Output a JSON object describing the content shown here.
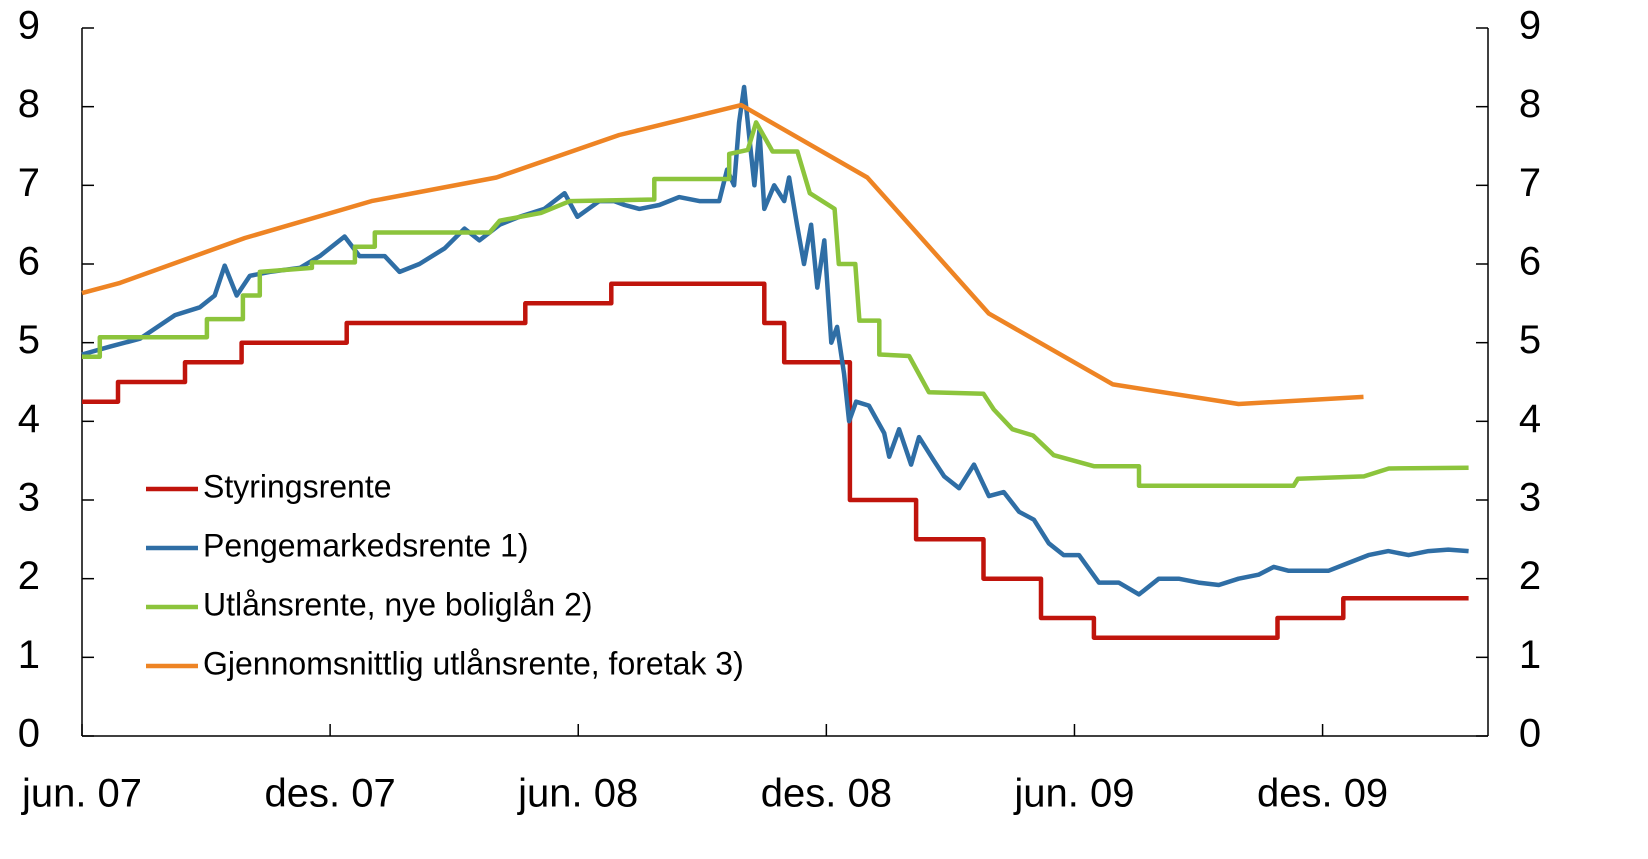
{
  "chart_data": {
    "type": "line",
    "xlim": [
      0,
      34
    ],
    "xticks": [
      {
        "value": 0,
        "label": "jun. 07"
      },
      {
        "value": 6,
        "label": "des. 07"
      },
      {
        "value": 12,
        "label": "jun. 08"
      },
      {
        "value": 18,
        "label": "des. 08"
      },
      {
        "value": 24,
        "label": "jun. 09"
      },
      {
        "value": 30,
        "label": "des. 09"
      }
    ],
    "ylim": [
      0,
      9
    ],
    "yticks": [
      0,
      1,
      2,
      3,
      4,
      5,
      6,
      7,
      8,
      9
    ],
    "y2lim": [
      0,
      9
    ],
    "y2ticks": [
      0,
      1,
      2,
      3,
      4,
      5,
      6,
      7,
      8,
      9
    ],
    "legend": "bottom-left",
    "series": [
      {
        "name": "Styringsrente",
        "color": "#c0140c",
        "x": [
          0,
          0.87,
          0.87,
          2.49,
          2.49,
          3.86,
          3.86,
          6.4,
          6.4,
          10.72,
          10.72,
          12.8,
          12.8,
          16.5,
          16.5,
          16.98,
          16.98,
          18.57,
          18.57,
          20.17,
          20.17,
          21.8,
          21.8,
          23.19,
          23.19,
          24.47,
          24.47,
          28.91,
          28.91,
          30.5,
          30.5,
          33.53
        ],
        "values": [
          4.25,
          4.25,
          4.5,
          4.5,
          4.75,
          4.75,
          5,
          5,
          5.25,
          5.25,
          5.5,
          5.5,
          5.75,
          5.75,
          5.25,
          5.25,
          4.75,
          4.75,
          3,
          3,
          2.5,
          2.5,
          2,
          2,
          1.5,
          1.5,
          1.25,
          1.25,
          1.5,
          1.5,
          1.75,
          1.75
        ]
      },
      {
        "name": "Pengemarkedsrente 1)",
        "color": "#2f6ea5",
        "x": [
          0,
          0.68,
          1.4,
          2.25,
          2.85,
          3.21,
          3.45,
          3.74,
          4.06,
          4.54,
          5.27,
          5.75,
          6.35,
          6.71,
          7.32,
          7.68,
          8.16,
          8.77,
          9.25,
          9.61,
          10.1,
          10.58,
          11.18,
          11.67,
          11.98,
          12.51,
          12.87,
          13.12,
          13.48,
          13.96,
          14.44,
          14.93,
          15.41,
          15.6,
          15.77,
          15.89,
          16.01,
          16.14,
          16.26,
          16.38,
          16.5,
          16.74,
          16.98,
          17.1,
          17.29,
          17.46,
          17.63,
          17.78,
          17.95,
          18.12,
          18.26,
          18.43,
          18.55,
          18.72,
          19.03,
          19.4,
          19.52,
          19.76,
          20.05,
          20.24,
          20.6,
          20.85,
          21.21,
          21.57,
          21.93,
          22.29,
          22.66,
          23.02,
          23.38,
          23.74,
          24.11,
          24.59,
          25.07,
          25.56,
          26.04,
          26.52,
          27.0,
          27.49,
          27.97,
          28.45,
          28.82,
          29.18,
          29.66,
          30.14,
          30.63,
          31.11,
          31.59,
          32.08,
          32.56,
          33.04,
          33.53
        ],
        "values": [
          4.85,
          4.95,
          5.05,
          5.35,
          5.45,
          5.6,
          5.98,
          5.6,
          5.85,
          5.9,
          5.95,
          6.1,
          6.35,
          6.1,
          6.1,
          5.9,
          6.0,
          6.2,
          6.45,
          6.3,
          6.5,
          6.6,
          6.7,
          6.9,
          6.6,
          6.8,
          6.8,
          6.75,
          6.7,
          6.75,
          6.85,
          6.8,
          6.8,
          7.2,
          7.0,
          7.8,
          8.25,
          7.6,
          7.0,
          7.7,
          6.7,
          7.0,
          6.8,
          7.1,
          6.5,
          6.0,
          6.5,
          5.7,
          6.3,
          5.0,
          5.2,
          4.6,
          4.0,
          4.25,
          4.2,
          3.85,
          3.55,
          3.9,
          3.45,
          3.8,
          3.5,
          3.3,
          3.15,
          3.45,
          3.05,
          3.1,
          2.85,
          2.75,
          2.45,
          2.3,
          2.3,
          1.95,
          1.95,
          1.8,
          2.0,
          2.0,
          1.95,
          1.92,
          2.0,
          2.05,
          2.15,
          2.1,
          2.1,
          2.1,
          2.2,
          2.3,
          2.35,
          2.3,
          2.35,
          2.37,
          2.35
        ]
      },
      {
        "name": "Utlånsrente, nye boliglån 2)",
        "color": "#8cc43c",
        "x": [
          0,
          0.43,
          0.43,
          3.02,
          3.02,
          3.89,
          3.89,
          4.3,
          4.3,
          5.56,
          5.56,
          6.6,
          6.6,
          7.08,
          7.08,
          9.86,
          10.1,
          11.1,
          11.8,
          13.84,
          13.84,
          15.65,
          15.65,
          16.1,
          16.3,
          16.7,
          17.3,
          17.6,
          18.2,
          18.3,
          18.7,
          18.8,
          19.28,
          19.28,
          20.0,
          20.48,
          21.8,
          22.05,
          22.5,
          23.0,
          23.5,
          24.47,
          25.56,
          25.56,
          29.3,
          29.4,
          31.0,
          31.6,
          33.53
        ],
        "values": [
          4.82,
          4.82,
          5.07,
          5.07,
          5.3,
          5.3,
          5.6,
          5.6,
          5.9,
          5.95,
          6.02,
          6.02,
          6.22,
          6.22,
          6.4,
          6.4,
          6.55,
          6.65,
          6.8,
          6.82,
          7.08,
          7.08,
          7.4,
          7.45,
          7.8,
          7.43,
          7.43,
          6.9,
          6.7,
          6.0,
          6.0,
          5.28,
          5.28,
          4.85,
          4.83,
          4.37,
          4.35,
          4.15,
          3.9,
          3.82,
          3.57,
          3.43,
          3.43,
          3.18,
          3.18,
          3.27,
          3.3,
          3.4,
          3.41
        ]
      },
      {
        "name": "Gjennomsnittlig utlånsrente, foretak 3)",
        "color": "#ee8424",
        "x": [
          0,
          0.92,
          3.94,
          7.0,
          10.02,
          12.99,
          15.94,
          18.99,
          21.93,
          24.93,
          27.97,
          30.99
        ],
        "values": [
          5.63,
          5.76,
          6.33,
          6.8,
          7.1,
          7.64,
          8.02,
          7.1,
          5.37,
          4.47,
          4.22,
          4.31
        ]
      }
    ]
  }
}
